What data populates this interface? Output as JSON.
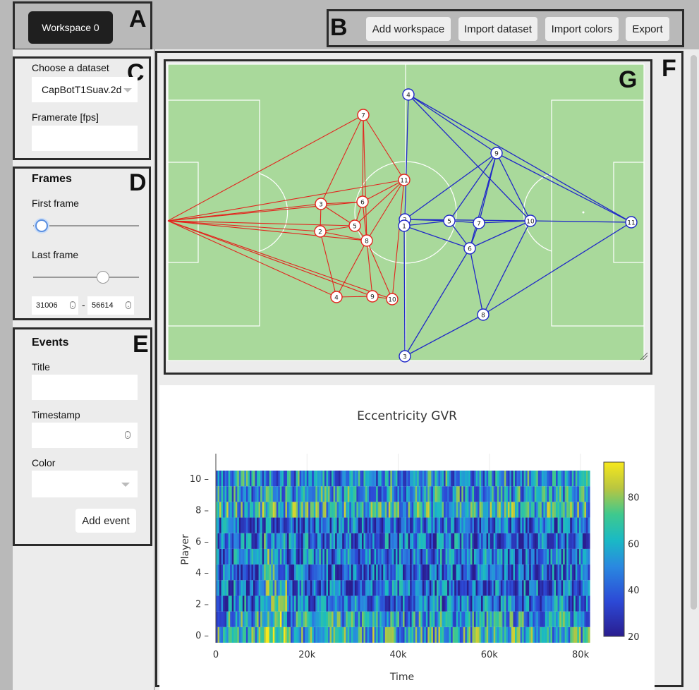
{
  "workspace": {
    "active_label": "Workspace 0"
  },
  "toolbar": {
    "add_workspace": "Add workspace",
    "import_dataset": "Import dataset",
    "import_colors": "Import colors",
    "export": "Export"
  },
  "region_letters": {
    "a": "A",
    "b": "B",
    "c": "C",
    "d": "D",
    "e": "E",
    "f": "F",
    "g": "G"
  },
  "dataset": {
    "choose_label": "Choose a dataset",
    "selected": "CapBotT1Suav.2d",
    "framerate_label": "Framerate [fps]",
    "framerate_value": ""
  },
  "frames": {
    "heading": "Frames",
    "first_label": "First frame",
    "last_label": "Last frame",
    "first_value": "31006",
    "last_value": "56614",
    "separator": "-",
    "first_slider_fraction": 0.08,
    "last_slider_fraction": 0.66
  },
  "events": {
    "heading": "Events",
    "title_label": "Title",
    "title_value": "",
    "timestamp_label": "Timestamp",
    "timestamp_value": "",
    "color_label": "Color",
    "color_value": "",
    "add_button": "Add event"
  },
  "pitch": {
    "colors": {
      "grass": "#a9d99b",
      "red_team": "#e3241d",
      "blue_team": "#1f28c8"
    },
    "red_players": [
      "7",
      "11",
      "3",
      "6",
      "5",
      "2",
      "8",
      "4",
      "9",
      "10"
    ],
    "blue_players": [
      "4",
      "9",
      "2",
      "1",
      "5",
      "7",
      "10",
      "11",
      "6",
      "8",
      "3"
    ]
  },
  "chart_data": {
    "type": "heatmap",
    "title": "Eccentricity GVR",
    "xlabel": "Time",
    "ylabel": "Player",
    "x_ticks": [
      "0",
      "20k",
      "40k",
      "60k",
      "80k"
    ],
    "y_ticks": [
      "0",
      "2",
      "4",
      "6",
      "8",
      "10"
    ],
    "colorbar_ticks": [
      "20",
      "40",
      "60",
      "80"
    ],
    "xlim": [
      0,
      82000
    ],
    "ylim": [
      -0.5,
      10.5
    ],
    "zlim": [
      20,
      95
    ],
    "colorscale": "Viridis-like (indigo → blue → teal → green → yellow)",
    "row_mean_estimates": [
      {
        "player": 0,
        "mean": 60
      },
      {
        "player": 1,
        "mean": 55
      },
      {
        "player": 2,
        "mean": 45
      },
      {
        "player": 3,
        "mean": 42
      },
      {
        "player": 4,
        "mean": 40
      },
      {
        "player": 5,
        "mean": 44
      },
      {
        "player": 6,
        "mean": 42
      },
      {
        "player": 7,
        "mean": 40
      },
      {
        "player": 8,
        "mean": 62
      },
      {
        "player": 9,
        "mean": 55
      },
      {
        "player": 10,
        "mean": 52
      }
    ]
  }
}
